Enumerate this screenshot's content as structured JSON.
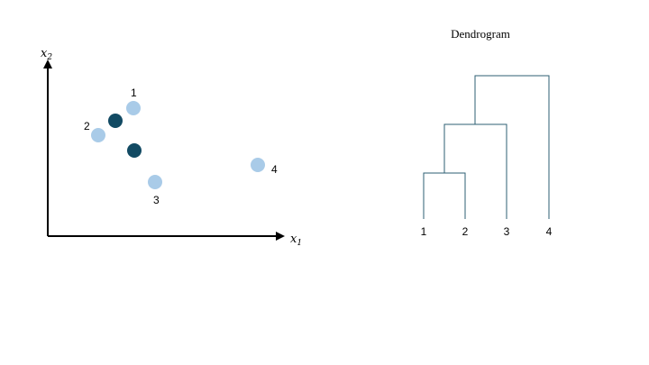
{
  "scatter": {
    "x_axis_label": {
      "base": "x",
      "sub": "1"
    },
    "y_axis_label": {
      "base": "x",
      "sub": "2"
    },
    "points": [
      {
        "label": "1",
        "kind": "data"
      },
      {
        "label": "2",
        "kind": "data"
      },
      {
        "label": "3",
        "kind": "data"
      },
      {
        "label": "4",
        "kind": "data"
      },
      {
        "label": "",
        "kind": "centroid"
      },
      {
        "label": "",
        "kind": "centroid"
      }
    ]
  },
  "dendrogram": {
    "title": "Dendrogram",
    "leaves": [
      "1",
      "2",
      "3",
      "4"
    ]
  },
  "colors": {
    "point": "#a9cbe8",
    "centroid": "#124a63",
    "dendrogram_line": "#2e5f73",
    "axis": "#000000"
  }
}
